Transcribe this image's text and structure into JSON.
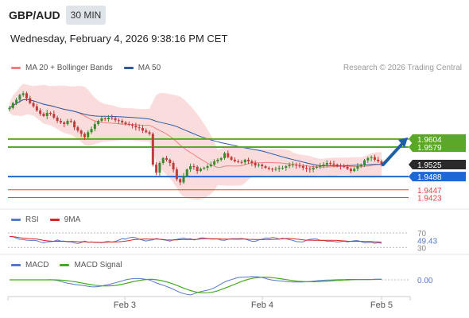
{
  "header": {
    "symbol": "GBP/AUD",
    "timeframe": "30 MIN",
    "datetime": "Wednesday, February 4, 2026 9:38:16 PM CET",
    "copyright": "Research © 2026 Trading Central"
  },
  "legends": {
    "main": [
      {
        "label": "MA 20 + Bollinger Bands",
        "color": "#f08080"
      },
      {
        "label": "MA 50",
        "color": "#2c5aa0"
      }
    ],
    "rsi": [
      {
        "label": "RSI",
        "color": "#5577cc"
      },
      {
        "label": "9MA",
        "color": "#dd2222"
      }
    ],
    "macd": [
      {
        "label": "MACD",
        "color": "#5577cc"
      },
      {
        "label": "MACD Signal",
        "color": "#44aa22"
      }
    ]
  },
  "chart_data": [
    {
      "type": "candlestick",
      "panel": "price",
      "y_range": [
        1.939,
        1.98
      ],
      "x_ticks": [
        "Feb 3",
        "Feb 4",
        "Feb 5"
      ],
      "current_price": "1.9525",
      "levels": [
        {
          "value": 1.9604,
          "label": "1.9604",
          "kind": "resistance",
          "color": "#5ba829"
        },
        {
          "value": 1.9579,
          "label": "1.9579",
          "kind": "resistance",
          "color": "#5ba829"
        },
        {
          "value": 1.9488,
          "label": "1.9488",
          "kind": "pivot",
          "color": "#1f66d6"
        },
        {
          "value": 1.9447,
          "label": "1.9447",
          "kind": "support",
          "color": "#e34444"
        },
        {
          "value": 1.9423,
          "label": "1.9423",
          "kind": "support",
          "color": "#e34444"
        }
      ],
      "bias_arrow": {
        "from": 1.9525,
        "to": 1.9604,
        "color": "#1f5fa8"
      },
      "colors": {
        "up": "#3a8a2e",
        "down": "#c23b3b",
        "bands": "#f7c5c5",
        "ma20": "#f08080",
        "ma50": "#2c5aa0"
      },
      "closes": [
        1.97,
        1.9715,
        1.9725,
        1.974,
        1.9745,
        1.973,
        1.9715,
        1.9705,
        1.9692,
        1.9682,
        1.9675,
        1.9685,
        1.9682,
        1.967,
        1.966,
        1.9655,
        1.965,
        1.966,
        1.9658,
        1.964,
        1.963,
        1.962,
        1.961,
        1.9625,
        1.9635,
        1.965,
        1.966,
        1.9668,
        1.9665,
        1.967,
        1.9668,
        1.9662,
        1.966,
        1.9655,
        1.965,
        1.9648,
        1.9645,
        1.964,
        1.9638,
        1.963,
        1.9625,
        1.962,
        1.9525,
        1.95,
        1.953,
        1.9545,
        1.954,
        1.953,
        1.951,
        1.948,
        1.947,
        1.949,
        1.951,
        1.952,
        1.9518,
        1.9505,
        1.9512,
        1.9515,
        1.952,
        1.9525,
        1.9535,
        1.954,
        1.9545,
        1.956,
        1.9548,
        1.954,
        1.9535,
        1.9533,
        1.9532,
        1.954,
        1.9535,
        1.953,
        1.9522,
        1.9525,
        1.952,
        1.9515,
        1.9512,
        1.951,
        1.9512,
        1.9515,
        1.9515,
        1.952,
        1.9524,
        1.9525,
        1.9522,
        1.952,
        1.9515,
        1.9512,
        1.951,
        1.9515,
        1.9518,
        1.952,
        1.9525,
        1.953,
        1.9528,
        1.9525,
        1.9522,
        1.952,
        1.9518,
        1.9512,
        1.9505,
        1.9512,
        1.952,
        1.9525,
        1.9538,
        1.9545,
        1.9548,
        1.954,
        1.9535,
        1.9525
      ]
    },
    {
      "type": "line",
      "panel": "rsi",
      "reference_lines": [
        70,
        30
      ],
      "last_value": "49.43",
      "series": [
        {
          "name": "RSI"
        },
        {
          "name": "9MA"
        }
      ]
    },
    {
      "type": "line",
      "panel": "macd",
      "zero_label": "0.00",
      "series": [
        {
          "name": "MACD"
        },
        {
          "name": "MACD Signal"
        }
      ]
    }
  ]
}
